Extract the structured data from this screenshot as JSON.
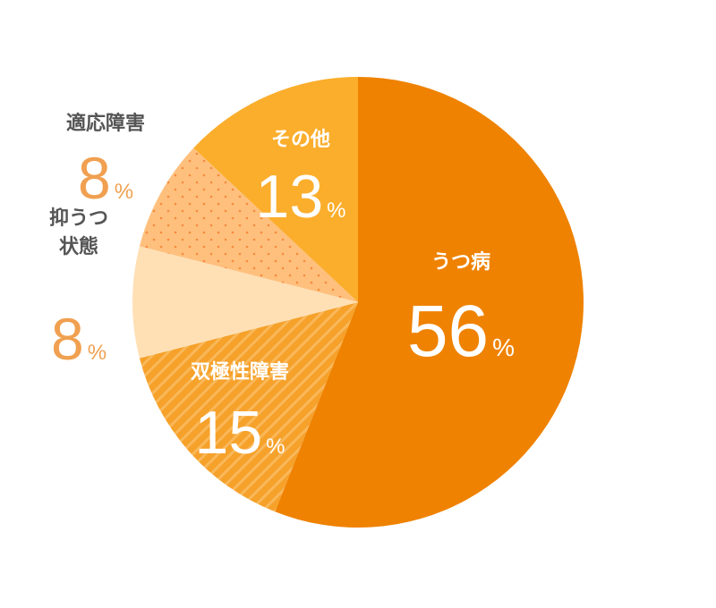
{
  "chart_data": {
    "type": "pie",
    "slices": [
      {
        "label": "うつ病",
        "value": 56,
        "unit": "%",
        "color": "#EF8200",
        "pattern": "solid"
      },
      {
        "label": "双極性障害",
        "value": 15,
        "unit": "%",
        "color": "#F6A12A",
        "pattern": "stripes"
      },
      {
        "label": "抑うつ\n状態",
        "value": 8,
        "unit": "%",
        "color": "#FFE0B5",
        "pattern": "solid"
      },
      {
        "label": "適応障害",
        "value": 8,
        "unit": "%",
        "color": "#FFC07E",
        "pattern": "dots"
      },
      {
        "label": "その他",
        "value": 13,
        "unit": "%",
        "color": "#FBAE2C",
        "pattern": "solid"
      }
    ],
    "label_colors": {
      "inside": "#ffffff",
      "outside_name": "#555555",
      "outside_value": "#F0A050"
    },
    "start_angle": "12 o'clock",
    "direction": "clockwise"
  }
}
